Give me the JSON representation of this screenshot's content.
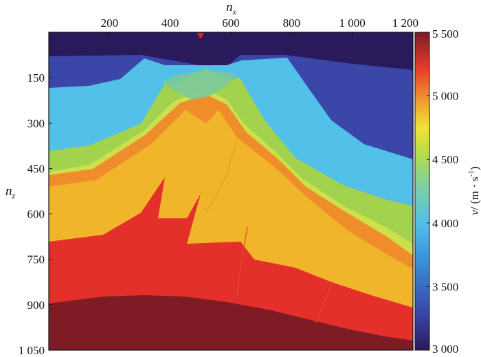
{
  "chart_data": {
    "type": "heatmap",
    "title": "",
    "xlabel": "n",
    "xlabel_sub": "x",
    "ylabel": "n",
    "ylabel_sub": "z",
    "x_ticks": [
      "200",
      "400",
      "600",
      "800",
      "1 000",
      "1 200"
    ],
    "x_tick_values": [
      200,
      400,
      600,
      800,
      1000,
      1200
    ],
    "y_ticks": [
      "150",
      "300",
      "450",
      "600",
      "750",
      "900",
      "1 050"
    ],
    "y_tick_values": [
      150,
      300,
      450,
      600,
      750,
      900,
      1050
    ],
    "x_axis_position": "top",
    "xlim": [
      0,
      1200
    ],
    "ylim": [
      0,
      1050
    ],
    "y_inverted": true,
    "grid": false,
    "colorbar": {
      "label": "v / (m · s⁻¹)",
      "label_prefix": "v",
      "label_body": "/ (m · s",
      "label_sup": "-1",
      "label_close": ")",
      "min": 3000,
      "max": 5500,
      "ticks": [
        "3 000",
        "3 500",
        "4 000",
        "4 500",
        "5 000",
        "5 500"
      ],
      "tick_values": [
        3000,
        3500,
        4000,
        4500,
        5000,
        5500
      ],
      "colormap": "jet"
    },
    "source_marker": {
      "x": 500,
      "z": 0,
      "color": "#e8202a"
    },
    "layers": [
      {
        "name": "water",
        "velocity": 3050,
        "color": "#2b1a5b"
      },
      {
        "name": "layer-1",
        "velocity": 3400,
        "color": "#3a47a8"
      },
      {
        "name": "layer-2",
        "velocity": 3850,
        "color": "#52c0e8"
      },
      {
        "name": "layer-3",
        "velocity": 4250,
        "color": "#a3d24f"
      },
      {
        "name": "thin-bed-green",
        "velocity": 4400,
        "color": "#cde04c"
      },
      {
        "name": "thin-bed-orange",
        "velocity": 4800,
        "color": "#ef8d2b"
      },
      {
        "name": "layer-4",
        "velocity": 4650,
        "color": "#f0b52b"
      },
      {
        "name": "layer-5",
        "velocity": 5100,
        "color": "#e3302a"
      },
      {
        "name": "basement",
        "velocity": 5450,
        "color": "#7e1b24"
      }
    ]
  }
}
